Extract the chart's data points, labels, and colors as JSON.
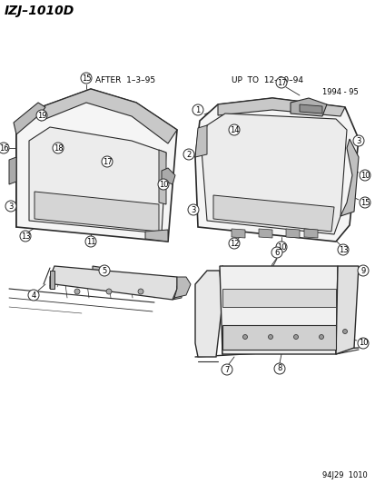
{
  "title": "IZJ–1010D",
  "bg_color": "#ffffff",
  "text_color": "#000000",
  "line_color": "#2a2a2a",
  "diagram_code": "94J29  1010",
  "after_label": "AFTER  1–3–95",
  "up_to_label": "UP  TO  12–30–94",
  "year_label": "1994 - 95",
  "figsize": [
    4.14,
    5.33
  ],
  "dpi": 100
}
